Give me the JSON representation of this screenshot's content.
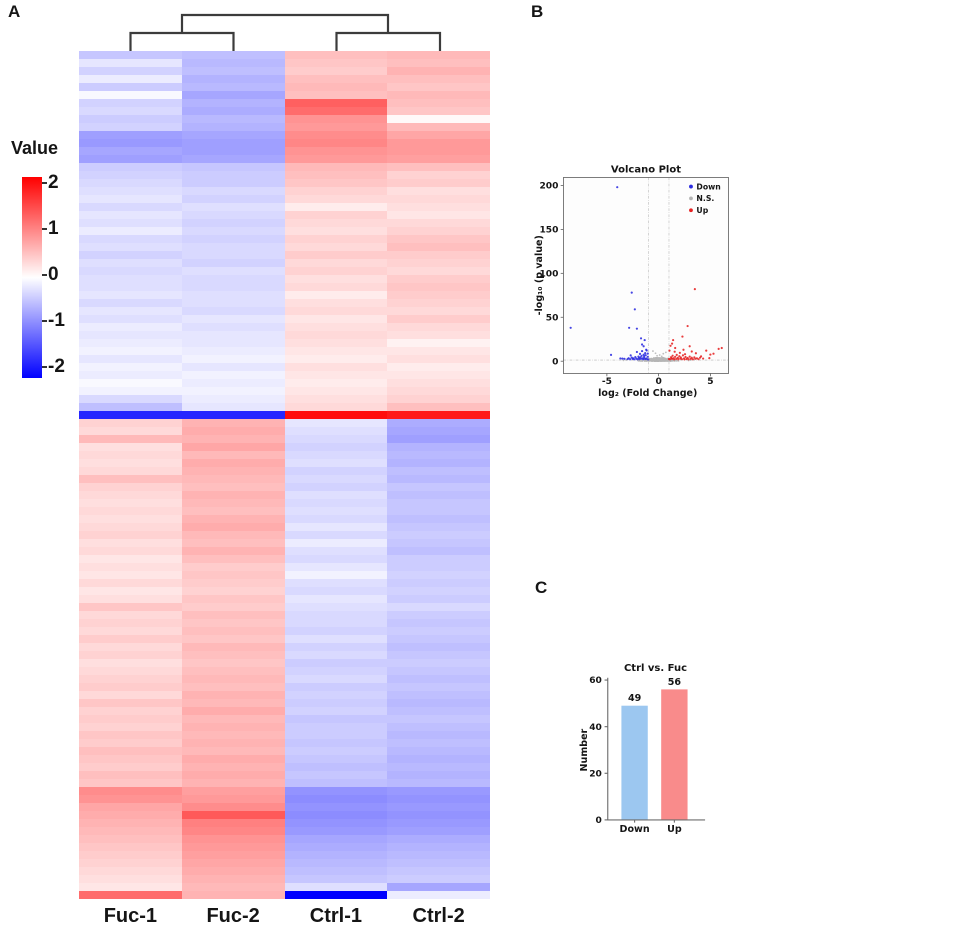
{
  "panels": {
    "a": "A",
    "b": "B",
    "c": "C"
  },
  "chart_data": [
    {
      "id": "heatmap",
      "type": "heatmap",
      "panel": "A",
      "columns": [
        "Fuc-1",
        "Fuc-2",
        "Ctrl-1",
        "Ctrl-2"
      ],
      "dendrogram_clusters": [
        [
          "Fuc-1",
          "Fuc-2"
        ],
        [
          "Ctrl-1",
          "Ctrl-2"
        ]
      ],
      "colorbar": {
        "title": "Value",
        "ticks": [
          "2",
          "1",
          "0",
          "-1",
          "-2"
        ],
        "vmin": -2,
        "vmax": 2,
        "max_color": "#ff0000",
        "mid_color": "#ffffff",
        "min_color": "#0000ff"
      },
      "rows": [
        [
          -0.45,
          -0.5,
          0.5,
          0.55
        ],
        [
          -0.2,
          -0.55,
          0.45,
          0.5
        ],
        [
          -0.35,
          -0.5,
          0.4,
          0.6
        ],
        [
          -0.15,
          -0.6,
          0.5,
          0.5
        ],
        [
          -0.4,
          -0.55,
          0.55,
          0.45
        ],
        [
          -0.05,
          -0.7,
          0.5,
          0.55
        ],
        [
          -0.35,
          -0.6,
          1.25,
          0.5
        ],
        [
          -0.3,
          -0.65,
          1.15,
          0.45
        ],
        [
          -0.4,
          -0.55,
          0.85,
          0.05
        ],
        [
          -0.35,
          -0.6,
          0.8,
          0.55
        ],
        [
          -0.75,
          -0.7,
          0.9,
          0.7
        ],
        [
          -0.8,
          -0.75,
          0.95,
          0.8
        ],
        [
          -0.7,
          -0.75,
          0.85,
          0.8
        ],
        [
          -0.75,
          -0.7,
          0.8,
          0.75
        ],
        [
          -0.4,
          -0.45,
          0.55,
          0.5
        ],
        [
          -0.35,
          -0.4,
          0.5,
          0.35
        ],
        [
          -0.3,
          -0.4,
          0.45,
          0.4
        ],
        [
          -0.25,
          -0.3,
          0.35,
          0.25
        ],
        [
          -0.2,
          -0.35,
          0.3,
          0.3
        ],
        [
          -0.3,
          -0.25,
          0.15,
          0.25
        ],
        [
          -0.2,
          -0.3,
          0.35,
          0.2
        ],
        [
          -0.25,
          -0.35,
          0.3,
          0.3
        ],
        [
          -0.15,
          -0.3,
          0.25,
          0.35
        ],
        [
          -0.3,
          -0.35,
          0.35,
          0.45
        ],
        [
          -0.25,
          -0.3,
          0.3,
          0.5
        ],
        [
          -0.35,
          -0.3,
          0.4,
          0.4
        ],
        [
          -0.25,
          -0.35,
          0.3,
          0.35
        ],
        [
          -0.3,
          -0.25,
          0.35,
          0.3
        ],
        [
          -0.25,
          -0.3,
          0.25,
          0.4
        ],
        [
          -0.25,
          -0.3,
          0.3,
          0.45
        ],
        [
          -0.2,
          -0.25,
          0.15,
          0.4
        ],
        [
          -0.3,
          -0.25,
          0.25,
          0.35
        ],
        [
          -0.2,
          -0.3,
          0.3,
          0.3
        ],
        [
          -0.25,
          -0.2,
          0.2,
          0.4
        ],
        [
          -0.15,
          -0.25,
          0.25,
          0.3
        ],
        [
          -0.2,
          -0.2,
          0.3,
          0.25
        ],
        [
          -0.15,
          -0.2,
          0.25,
          0.1
        ],
        [
          -0.1,
          -0.15,
          0.2,
          0.2
        ],
        [
          -0.2,
          -0.1,
          0.15,
          0.25
        ],
        [
          -0.1,
          -0.2,
          0.25,
          0.15
        ],
        [
          -0.15,
          -0.1,
          0.2,
          0.2
        ],
        [
          -0.05,
          -0.15,
          0.15,
          0.25
        ],
        [
          -0.1,
          -0.1,
          0.2,
          0.3
        ],
        [
          -0.3,
          -0.15,
          0.25,
          0.35
        ],
        [
          -0.5,
          -0.2,
          0.3,
          0.5
        ],
        [
          -1.7,
          -1.7,
          1.9,
          1.8
        ],
        [
          0.35,
          0.6,
          -0.2,
          -0.65
        ],
        [
          0.3,
          0.65,
          -0.25,
          -0.7
        ],
        [
          0.55,
          0.6,
          -0.3,
          -0.75
        ],
        [
          0.25,
          0.7,
          -0.35,
          -0.6
        ],
        [
          0.3,
          0.55,
          -0.3,
          -0.55
        ],
        [
          0.25,
          0.65,
          -0.25,
          -0.6
        ],
        [
          0.3,
          0.6,
          -0.35,
          -0.5
        ],
        [
          0.5,
          0.55,
          -0.3,
          -0.55
        ],
        [
          0.35,
          0.5,
          -0.35,
          -0.45
        ],
        [
          0.3,
          0.6,
          -0.25,
          -0.5
        ],
        [
          0.25,
          0.55,
          -0.3,
          -0.45
        ],
        [
          0.3,
          0.5,
          -0.25,
          -0.45
        ],
        [
          0.25,
          0.6,
          -0.3,
          -0.5
        ],
        [
          0.3,
          0.65,
          -0.2,
          -0.45
        ],
        [
          0.35,
          0.55,
          -0.3,
          -0.4
        ],
        [
          0.25,
          0.5,
          -0.15,
          -0.45
        ],
        [
          0.3,
          0.6,
          -0.25,
          -0.5
        ],
        [
          0.2,
          0.5,
          -0.3,
          -0.4
        ],
        [
          0.25,
          0.4,
          -0.2,
          -0.4
        ],
        [
          0.2,
          0.45,
          -0.1,
          -0.35
        ],
        [
          0.3,
          0.4,
          -0.25,
          -0.4
        ],
        [
          0.2,
          0.35,
          -0.3,
          -0.35
        ],
        [
          0.25,
          0.45,
          -0.2,
          -0.4
        ],
        [
          0.45,
          0.4,
          -0.25,
          -0.3
        ],
        [
          0.3,
          0.5,
          -0.3,
          -0.4
        ],
        [
          0.35,
          0.45,
          -0.3,
          -0.45
        ],
        [
          0.3,
          0.5,
          -0.35,
          -0.4
        ],
        [
          0.4,
          0.45,
          -0.25,
          -0.45
        ],
        [
          0.3,
          0.55,
          -0.35,
          -0.5
        ],
        [
          0.35,
          0.5,
          -0.3,
          -0.45
        ],
        [
          0.25,
          0.45,
          -0.4,
          -0.4
        ],
        [
          0.3,
          0.5,
          -0.35,
          -0.45
        ],
        [
          0.35,
          0.55,
          -0.3,
          -0.5
        ],
        [
          0.4,
          0.5,
          -0.4,
          -0.45
        ],
        [
          0.3,
          0.6,
          -0.35,
          -0.5
        ],
        [
          0.45,
          0.55,
          -0.4,
          -0.55
        ],
        [
          0.35,
          0.65,
          -0.35,
          -0.5
        ],
        [
          0.4,
          0.55,
          -0.45,
          -0.45
        ],
        [
          0.35,
          0.6,
          -0.4,
          -0.5
        ],
        [
          0.45,
          0.55,
          -0.4,
          -0.55
        ],
        [
          0.4,
          0.6,
          -0.45,
          -0.5
        ],
        [
          0.5,
          0.55,
          -0.4,
          -0.55
        ],
        [
          0.45,
          0.65,
          -0.45,
          -0.6
        ],
        [
          0.4,
          0.6,
          -0.5,
          -0.55
        ],
        [
          0.5,
          0.65,
          -0.45,
          -0.6
        ],
        [
          0.45,
          0.6,
          -0.5,
          -0.55
        ],
        [
          0.9,
          0.75,
          -0.85,
          -0.8
        ],
        [
          0.85,
          0.8,
          -0.9,
          -0.85
        ],
        [
          0.7,
          0.9,
          -0.85,
          -0.8
        ],
        [
          0.65,
          1.3,
          -0.9,
          -0.85
        ],
        [
          0.6,
          1.0,
          -0.85,
          -0.8
        ],
        [
          0.55,
          0.95,
          -0.8,
          -0.75
        ],
        [
          0.5,
          0.85,
          -0.7,
          -0.65
        ],
        [
          0.45,
          0.8,
          -0.65,
          -0.6
        ],
        [
          0.4,
          0.75,
          -0.6,
          -0.55
        ],
        [
          0.35,
          0.7,
          -0.55,
          -0.5
        ],
        [
          0.3,
          0.65,
          -0.5,
          -0.45
        ],
        [
          0.25,
          0.6,
          -0.45,
          -0.4
        ],
        [
          0.2,
          0.55,
          -0.25,
          -0.7
        ],
        [
          1.15,
          0.6,
          -2.0,
          -0.15
        ]
      ]
    },
    {
      "id": "volcano",
      "type": "scatter",
      "panel": "B",
      "title": "Volcano Plot",
      "xlabel": "log₂ (Fold Change)",
      "ylabel": "-log₁₀ (p value)",
      "xlim": [
        -9.2,
        6.75
      ],
      "ylim": [
        -14,
        209
      ],
      "xticks": [
        -5,
        0,
        5
      ],
      "yticks": [
        0,
        50,
        100,
        150,
        200
      ],
      "vlines": [
        -1,
        1
      ],
      "hline": 1.3,
      "grid": false,
      "legend_position": "top-right",
      "legend": [
        {
          "label": "Down",
          "color": "#2b2be0"
        },
        {
          "label": "N.S.",
          "color": "#b5b5b5"
        },
        {
          "label": "Up",
          "color": "#e62222"
        }
      ],
      "series": [
        {
          "name": "Down",
          "color": "#2b2be0",
          "count": 49,
          "points": [
            [
              -4.0,
              198
            ],
            [
              -2.6,
              78
            ],
            [
              -2.3,
              59
            ],
            [
              -8.5,
              38
            ],
            [
              -2.85,
              38
            ],
            [
              -2.1,
              37
            ],
            [
              -1.7,
              26
            ],
            [
              -1.35,
              24
            ],
            [
              -1.6,
              19
            ],
            [
              -1.45,
              17
            ],
            [
              -1.2,
              13
            ],
            [
              -1.6,
              11.5
            ],
            [
              -2.1,
              10.5
            ],
            [
              -1.3,
              9.2
            ],
            [
              -1.8,
              8.3
            ],
            [
              -4.6,
              7.2
            ],
            [
              -2.7,
              6.6
            ],
            [
              -1.15,
              12.2
            ],
            [
              -1.05,
              5
            ],
            [
              -1.4,
              5.6
            ],
            [
              -2.5,
              2.6
            ],
            [
              -3.7,
              3.1
            ],
            [
              -3.5,
              2.9
            ],
            [
              -3.3,
              2.7
            ],
            [
              -3.0,
              2.4
            ],
            [
              -2.9,
              3.4
            ],
            [
              -2.75,
              2.2
            ],
            [
              -2.6,
              4.1
            ],
            [
              -2.45,
              3.3
            ],
            [
              -2.35,
              2.1
            ],
            [
              -2.25,
              4.6
            ],
            [
              -2.15,
              2.9
            ],
            [
              -2.05,
              2.2
            ],
            [
              -1.95,
              5.2
            ],
            [
              -1.9,
              3.6
            ],
            [
              -1.85,
              2.3
            ],
            [
              -1.75,
              4.4
            ],
            [
              -1.7,
              2.8
            ],
            [
              -1.65,
              6.1
            ],
            [
              -1.55,
              3.2
            ],
            [
              -1.5,
              2.2
            ],
            [
              -1.45,
              7.4
            ],
            [
              -1.4,
              3.9
            ],
            [
              -1.3,
              2.5
            ],
            [
              -1.25,
              6.8
            ],
            [
              -1.2,
              3.1
            ],
            [
              -1.1,
              2.3
            ],
            [
              -1.05,
              8.6
            ],
            [
              -1.0,
              2.0
            ]
          ]
        },
        {
          "name": "N.S.",
          "color": "#b5b5b5",
          "cloud": {
            "count": 340,
            "seed": 13,
            "x_spread": 1.55,
            "y_base": 0.7,
            "y_peak": 3.3
          },
          "points": [
            [
              -3.4,
              0.9
            ],
            [
              -3.1,
              1.4
            ],
            [
              3.1,
              1.2
            ],
            [
              3.4,
              1.8
            ],
            [
              2.9,
              0.8
            ],
            [
              0.7,
              10
            ],
            [
              0.45,
              8.5
            ],
            [
              -0.3,
              9
            ],
            [
              -0.55,
              11.5
            ],
            [
              0.1,
              7
            ],
            [
              -0.15,
              6.2
            ],
            [
              0.3,
              5.5
            ]
          ]
        },
        {
          "name": "Up",
          "color": "#e62222",
          "count": 56,
          "points": [
            [
              3.5,
              82
            ],
            [
              2.8,
              40
            ],
            [
              2.3,
              28
            ],
            [
              1.4,
              24
            ],
            [
              1.3,
              20
            ],
            [
              3.0,
              17
            ],
            [
              1.6,
              15
            ],
            [
              6.1,
              15
            ],
            [
              5.8,
              14
            ],
            [
              4.6,
              12
            ],
            [
              3.2,
              11
            ],
            [
              5.0,
              7.5
            ],
            [
              4.1,
              5.5
            ],
            [
              3.6,
              9
            ],
            [
              2.4,
              13
            ],
            [
              1.15,
              17.5
            ],
            [
              1.05,
              12
            ],
            [
              1.1,
              2.2
            ],
            [
              1.2,
              4.5
            ],
            [
              1.3,
              2.8
            ],
            [
              1.35,
              6.2
            ],
            [
              1.45,
              3.4
            ],
            [
              1.5,
              2.1
            ],
            [
              1.6,
              5.0
            ],
            [
              1.7,
              2.6
            ],
            [
              1.75,
              7.2
            ],
            [
              1.85,
              3.8
            ],
            [
              1.9,
              2.2
            ],
            [
              2.0,
              5.6
            ],
            [
              2.1,
              2.9
            ],
            [
              2.15,
              4.2
            ],
            [
              2.25,
              2.3
            ],
            [
              2.35,
              6.6
            ],
            [
              2.45,
              3.1
            ],
            [
              2.5,
              2.0
            ],
            [
              2.6,
              4.8
            ],
            [
              2.7,
              2.5
            ],
            [
              2.8,
              3.6
            ],
            [
              2.9,
              2.1
            ],
            [
              3.0,
              5.2
            ],
            [
              3.1,
              2.7
            ],
            [
              3.2,
              3.9
            ],
            [
              3.3,
              2.2
            ],
            [
              3.45,
              4.4
            ],
            [
              3.55,
              2.8
            ],
            [
              3.7,
              3.3
            ],
            [
              3.85,
              2.3
            ],
            [
              4.0,
              4.0
            ],
            [
              4.3,
              3.0
            ],
            [
              4.9,
              3.5
            ],
            [
              5.3,
              8.5
            ],
            [
              2.05,
              9.5
            ],
            [
              1.55,
              10.8
            ],
            [
              2.55,
              8.0
            ],
            [
              1.25,
              3.2
            ],
            [
              1.0,
              2.5
            ]
          ]
        }
      ]
    },
    {
      "id": "bar",
      "type": "bar",
      "panel": "C",
      "title": "Ctrl vs. Fuc",
      "ylabel": "Number",
      "categories": [
        "Down",
        "Up"
      ],
      "values": [
        49,
        56
      ],
      "value_labels": [
        "49",
        "56"
      ],
      "bar_colors": [
        "#9cc7f0",
        "#f98b8b"
      ],
      "yticks": [
        0,
        20,
        40,
        60
      ],
      "ylim": [
        0,
        60
      ]
    }
  ]
}
